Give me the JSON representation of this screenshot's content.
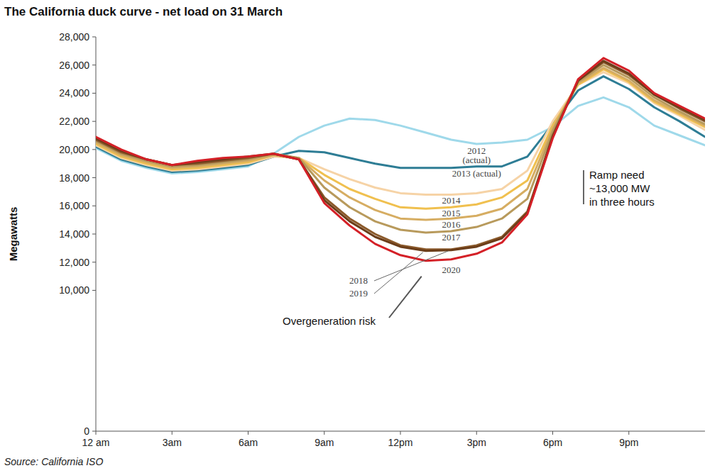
{
  "chart_data": {
    "type": "line",
    "title": "The California duck curve - net load on 31 March",
    "y_label": "Megawatts",
    "source": "Source: California ISO",
    "annotations": [
      [
        "Ramp need",
        "~13,000 MW",
        "in three hours"
      ],
      [
        "Overgeneration risk"
      ]
    ],
    "x": [
      0,
      1,
      2,
      3,
      4,
      5,
      6,
      7,
      8,
      9,
      10,
      11,
      12,
      13,
      14,
      15,
      16,
      17,
      18,
      19,
      20,
      21,
      22,
      23,
      24
    ],
    "xlim": [
      0,
      24
    ],
    "xticks": [
      {
        "value": 0,
        "label": "12 am"
      },
      {
        "value": 3,
        "label": "3am"
      },
      {
        "value": 6,
        "label": "6am"
      },
      {
        "value": 9,
        "label": "9am"
      },
      {
        "value": 12,
        "label": "12pm"
      },
      {
        "value": 15,
        "label": "3pm"
      },
      {
        "value": 18,
        "label": "6pm"
      },
      {
        "value": 21,
        "label": "9pm"
      }
    ],
    "ylim": [
      0,
      28000
    ],
    "yticks": [
      0,
      {
        "value": 10000,
        "label": "10,000"
      },
      {
        "value": 12000,
        "label": "12,000"
      },
      {
        "value": 14000,
        "label": "14,000"
      },
      {
        "value": 16000,
        "label": "16,000"
      },
      {
        "value": 18000,
        "label": "18,000"
      },
      {
        "value": 20000,
        "label": "20,000"
      },
      {
        "value": 22000,
        "label": "22,000"
      },
      {
        "value": 24000,
        "label": "24,000"
      },
      {
        "value": 26000,
        "label": "26,000"
      },
      {
        "value": 28000,
        "label": "28,000"
      }
    ],
    "grid": false,
    "series": [
      {
        "name": "2012 (actual)",
        "color": "#9fd9ea",
        "values": [
          20100,
          19200,
          18700,
          18300,
          18400,
          18600,
          18800,
          19700,
          20900,
          21700,
          22200,
          22100,
          21700,
          21200,
          20700,
          20400,
          20500,
          20700,
          21600,
          23100,
          23700,
          23000,
          21700,
          21000,
          20300
        ]
      },
      {
        "name": "2013 (actual)",
        "color": "#2e7d95",
        "values": [
          20200,
          19300,
          18800,
          18400,
          18500,
          18700,
          18900,
          19500,
          19900,
          19800,
          19400,
          19000,
          18700,
          18700,
          18700,
          18800,
          18800,
          19500,
          21800,
          24200,
          25200,
          24300,
          23000,
          22000,
          20900
        ]
      },
      {
        "name": "2014",
        "color": "#f6d3a6",
        "values": [
          20300,
          19400,
          18900,
          18500,
          18600,
          18800,
          19000,
          19500,
          19400,
          18600,
          17900,
          17300,
          16900,
          16800,
          16800,
          16900,
          17200,
          18500,
          22000,
          24600,
          25500,
          24700,
          23300,
          22400,
          21400
        ]
      },
      {
        "name": "2015",
        "color": "#f0c04f",
        "values": [
          20400,
          19500,
          19000,
          18600,
          18700,
          18900,
          19100,
          19600,
          19400,
          18200,
          17200,
          16500,
          15900,
          15800,
          15900,
          16100,
          16600,
          17800,
          21700,
          24600,
          25700,
          24800,
          23400,
          22500,
          21600
        ]
      },
      {
        "name": "2016",
        "color": "#d6ad62",
        "values": [
          20500,
          19600,
          19100,
          18700,
          18800,
          19000,
          19200,
          19600,
          19400,
          17800,
          16600,
          15700,
          15100,
          15000,
          15100,
          15300,
          15800,
          17200,
          21500,
          24700,
          25800,
          24900,
          23500,
          22600,
          21700
        ]
      },
      {
        "name": "2017",
        "color": "#b89a5c",
        "values": [
          20600,
          19700,
          19200,
          18800,
          18900,
          19100,
          19300,
          19700,
          19400,
          17300,
          15900,
          14900,
          14300,
          14100,
          14200,
          14500,
          15100,
          16500,
          21300,
          24800,
          26000,
          25100,
          23700,
          22700,
          21800
        ]
      },
      {
        "name": "2018",
        "color": "#8b5a2b",
        "values": [
          20700,
          19800,
          19300,
          18900,
          19000,
          19200,
          19400,
          19700,
          19300,
          16600,
          15100,
          14000,
          13200,
          12900,
          12900,
          13200,
          13800,
          15600,
          21000,
          24900,
          26200,
          25300,
          23900,
          22900,
          22000
        ]
      },
      {
        "name": "2019",
        "color": "#6b3d19",
        "values": [
          20800,
          19900,
          19300,
          18900,
          19100,
          19300,
          19500,
          19700,
          19300,
          16400,
          14900,
          13800,
          13100,
          12800,
          12850,
          13100,
          13700,
          15500,
          20900,
          24900,
          26300,
          25400,
          23900,
          23000,
          22100
        ]
      },
      {
        "name": "2020",
        "color": "#d42027",
        "values": [
          20900,
          20000,
          19300,
          18900,
          19200,
          19400,
          19500,
          19700,
          19300,
          16200,
          14600,
          13300,
          12500,
          12100,
          12200,
          12600,
          13400,
          15400,
          20800,
          25000,
          26500,
          25600,
          24000,
          23100,
          22200
        ]
      }
    ]
  }
}
